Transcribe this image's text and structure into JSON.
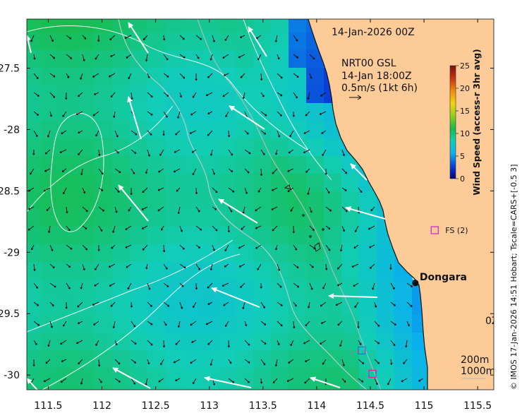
{
  "map": {
    "region": "Western Australia coast near Dongara",
    "lon_range": [
      111.3,
      115.65
    ],
    "lat_range": [
      -30.12,
      -27.1
    ],
    "x_ticks": [
      111.5,
      112,
      112.5,
      113,
      113.5,
      114,
      114.5,
      115,
      115.5
    ],
    "x_tick_labels": [
      "111.5",
      "112",
      "112.5",
      "113",
      "113.5",
      "114",
      "114.5",
      "115",
      "115.5"
    ],
    "y_ticks": [
      -27.5,
      -28,
      -28.5,
      -29,
      -29.5,
      -30
    ],
    "y_tick_labels": [
      "27.5",
      "-28",
      "28.5",
      "-29",
      "29.5",
      "-30"
    ],
    "title": "14-Jan-2026 00Z",
    "subtitle_line1": "NRT00 GSL",
    "subtitle_line2": "14-Jan 18:00Z",
    "scale_arrow_label": "0.5m/s (1kt 6h)",
    "right_edge_fragment": "0Z",
    "contour_legend": {
      "line1": "200m",
      "line2": "1000m"
    },
    "credit": "© IMOS 17-Jan-2026 14:51 Hobart; Tscale=CARS+[-0.5 3]",
    "colors": {
      "land": "#fccb97",
      "sea_low": "#18b845",
      "sea_mid": "#12c9a6",
      "sea_high": "#0cc0e8",
      "sea_max": "#1657c8"
    }
  },
  "places": [
    {
      "name": "Dongara",
      "lon": 114.92,
      "lat": -29.25
    }
  ],
  "stations": [
    {
      "label": "FS (2)",
      "lon": 115.1,
      "lat": -28.82
    },
    {
      "label": "",
      "lon": 114.42,
      "lat": -29.8
    },
    {
      "label": "",
      "lon": 114.52,
      "lat": -29.99
    }
  ],
  "colorbar": {
    "label": "Wind Speed (access-r 3hr avg)",
    "min": 0,
    "max": 25,
    "ticks": [
      0,
      5,
      10,
      15,
      20,
      25
    ],
    "tick_labels": [
      "0",
      "5",
      "10",
      "15",
      "20",
      "25"
    ],
    "stops": [
      "#00007a",
      "#0a40d8",
      "#0ab0ee",
      "#12cdb8",
      "#18bb48",
      "#8ed21c",
      "#f2d510",
      "#f08a10",
      "#c43410",
      "#7a1006"
    ]
  }
}
